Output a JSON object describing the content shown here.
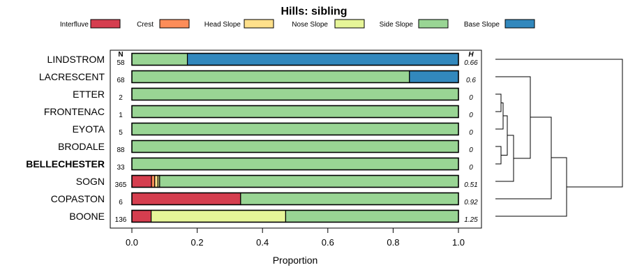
{
  "chart_data": {
    "type": "stacked-bar",
    "title": "Hills: sibling",
    "xlabel": "Proportion",
    "xlim": [
      0,
      1
    ],
    "x_ticks": [
      "0.0",
      "0.2",
      "0.4",
      "0.6",
      "0.8",
      "1.0"
    ],
    "n_header": "N",
    "h_header": "H",
    "legend": [
      {
        "label": "Interfluve",
        "color": "#d53e4f"
      },
      {
        "label": "Crest",
        "color": "#fc8d59"
      },
      {
        "label": "Head Slope",
        "color": "#fee08b"
      },
      {
        "label": "Nose Slope",
        "color": "#e6f598"
      },
      {
        "label": "Side Slope",
        "color": "#99d594"
      },
      {
        "label": "Base Slope",
        "color": "#3288bd"
      }
    ],
    "rows": [
      {
        "name": "LINDSTROM",
        "n": "58",
        "h": "0.66",
        "bold": false,
        "values": [
          0,
          0,
          0,
          0,
          0.17,
          0.83
        ]
      },
      {
        "name": "LACRESCENT",
        "n": "68",
        "h": "0.6",
        "bold": false,
        "values": [
          0,
          0,
          0,
          0,
          0.85,
          0.15
        ]
      },
      {
        "name": "ETTER",
        "n": "2",
        "h": "0",
        "bold": false,
        "values": [
          0,
          0,
          0,
          0,
          1.0,
          0
        ]
      },
      {
        "name": "FRONTENAC",
        "n": "1",
        "h": "0",
        "bold": false,
        "values": [
          0,
          0,
          0,
          0,
          1.0,
          0
        ]
      },
      {
        "name": "EYOTA",
        "n": "5",
        "h": "0",
        "bold": false,
        "values": [
          0,
          0,
          0,
          0,
          1.0,
          0
        ]
      },
      {
        "name": "BRODALE",
        "n": "88",
        "h": "0",
        "bold": false,
        "values": [
          0,
          0,
          0,
          0,
          1.0,
          0
        ]
      },
      {
        "name": "BELLECHESTER",
        "n": "33",
        "h": "0",
        "bold": true,
        "values": [
          0,
          0,
          0,
          0,
          1.0,
          0
        ]
      },
      {
        "name": "SOGN",
        "n": "365",
        "h": "0.51",
        "bold": false,
        "values": [
          0.06,
          0.01,
          0.01,
          0.005,
          0.915,
          0
        ]
      },
      {
        "name": "COPASTON",
        "n": "6",
        "h": "0.92",
        "bold": false,
        "values": [
          0.333,
          0,
          0,
          0,
          0.667,
          0
        ]
      },
      {
        "name": "BOONE",
        "n": "136",
        "h": "1.25",
        "bold": false,
        "values": [
          0.059,
          0,
          0,
          0.412,
          0.529,
          0
        ]
      }
    ]
  }
}
